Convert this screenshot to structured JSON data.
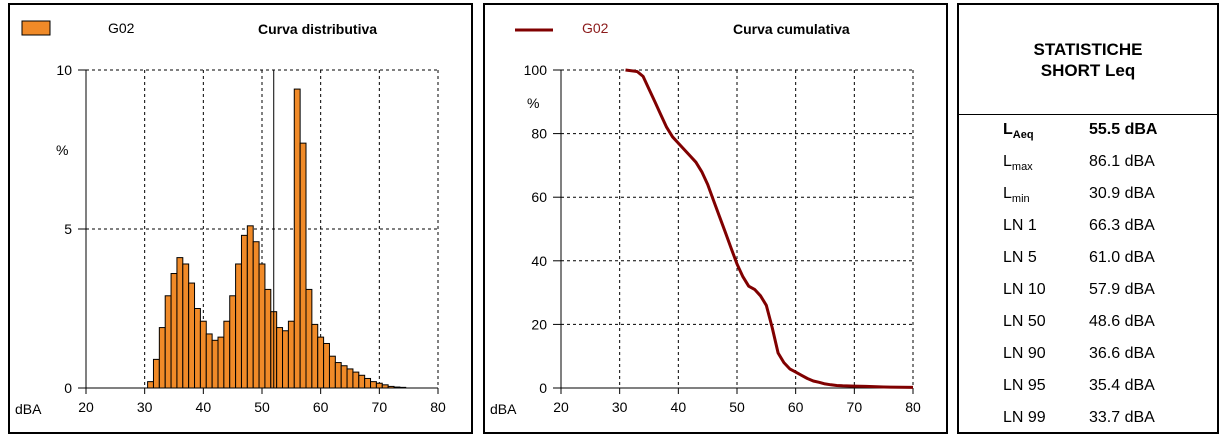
{
  "colors": {
    "bar_fill": "#f08a28",
    "cumulative_line": "#800000",
    "legend_text_2": "#8b1a1a"
  },
  "panel1": {
    "legend_label": "G02",
    "title": "Curva distributiva",
    "y_unit": "%",
    "x_unit": "dBA"
  },
  "panel2": {
    "legend_label": "G02",
    "title": "Curva cumulativa",
    "y_unit": "%",
    "x_unit": "dBA"
  },
  "stats": {
    "title_line1": "STATISTICHE",
    "title_line2": "SHORT Leq",
    "rows": [
      {
        "label": "L",
        "sub": "Aeq",
        "value": "55.5 dBA",
        "bold": true
      },
      {
        "label": "L",
        "sub": "max",
        "value": "86.1 dBA",
        "bold": false
      },
      {
        "label": "L",
        "sub": "min",
        "value": "30.9 dBA",
        "bold": false
      },
      {
        "label": "LN 1",
        "sub": "",
        "value": "66.3 dBA",
        "bold": false
      },
      {
        "label": "LN 5",
        "sub": "",
        "value": "61.0 dBA",
        "bold": false
      },
      {
        "label": "LN 10",
        "sub": "",
        "value": "57.9 dBA",
        "bold": false
      },
      {
        "label": "LN 50",
        "sub": "",
        "value": "48.6 dBA",
        "bold": false
      },
      {
        "label": "LN 90",
        "sub": "",
        "value": "36.6 dBA",
        "bold": false
      },
      {
        "label": "LN 95",
        "sub": "",
        "value": "35.4 dBA",
        "bold": false
      },
      {
        "label": "LN 99",
        "sub": "",
        "value": "33.7 dBA",
        "bold": false
      }
    ]
  },
  "chart_data": [
    {
      "type": "bar",
      "title": "Curva distributiva",
      "legend": [
        "G02"
      ],
      "xlabel": "dBA",
      "ylabel": "%",
      "xlim": [
        20,
        80
      ],
      "ylim": [
        0,
        10
      ],
      "x_ticks": [
        20,
        30,
        40,
        50,
        60,
        70,
        80
      ],
      "y_ticks": [
        0,
        5,
        10
      ],
      "bin_width": 1,
      "x": [
        31,
        32,
        33,
        34,
        35,
        36,
        37,
        38,
        39,
        40,
        41,
        42,
        43,
        44,
        45,
        46,
        47,
        48,
        49,
        50,
        51,
        52,
        53,
        54,
        55,
        56,
        57,
        58,
        59,
        60,
        61,
        62,
        63,
        64,
        65,
        66,
        67,
        68,
        69,
        70,
        71,
        72,
        73,
        74
      ],
      "values": [
        0.2,
        0.9,
        1.9,
        2.9,
        3.6,
        4.1,
        3.9,
        3.3,
        2.5,
        2.1,
        1.7,
        1.5,
        1.6,
        2.1,
        2.9,
        3.9,
        4.8,
        5.1,
        4.6,
        3.9,
        3.1,
        2.4,
        1.9,
        1.8,
        2.1,
        9.4,
        7.7,
        3.1,
        2.0,
        1.6,
        1.4,
        1.0,
        0.8,
        0.7,
        0.6,
        0.5,
        0.4,
        0.3,
        0.2,
        0.15,
        0.1,
        0.05,
        0.03,
        0.02
      ],
      "vertical_marker": 52,
      "grid": true
    },
    {
      "type": "line",
      "title": "Curva cumulativa",
      "legend": [
        "G02"
      ],
      "xlabel": "dBA",
      "ylabel": "%",
      "xlim": [
        20,
        80
      ],
      "ylim": [
        0,
        100
      ],
      "x_ticks": [
        20,
        30,
        40,
        50,
        60,
        70,
        80
      ],
      "y_ticks": [
        0,
        20,
        40,
        60,
        80,
        100
      ],
      "series": [
        {
          "x": [
            31,
            33,
            34,
            35,
            36,
            37,
            38,
            39,
            40,
            41,
            42,
            43,
            44,
            45,
            46,
            47,
            48,
            49,
            50,
            51,
            52,
            53,
            54,
            55,
            56,
            57,
            58,
            59,
            60,
            61,
            62,
            63,
            64,
            65,
            66,
            67,
            68,
            70,
            72,
            75,
            80
          ],
          "y": [
            100,
            99.5,
            98,
            94,
            90,
            86,
            82,
            79,
            77,
            75,
            73,
            71,
            68,
            64,
            59,
            54,
            49,
            44,
            39,
            35,
            32,
            31,
            29,
            26,
            19,
            11,
            8,
            6,
            5,
            4,
            3,
            2.2,
            1.8,
            1.3,
            1.0,
            0.8,
            0.7,
            0.6,
            0.5,
            0.3,
            0.2
          ]
        }
      ],
      "grid": true
    }
  ]
}
